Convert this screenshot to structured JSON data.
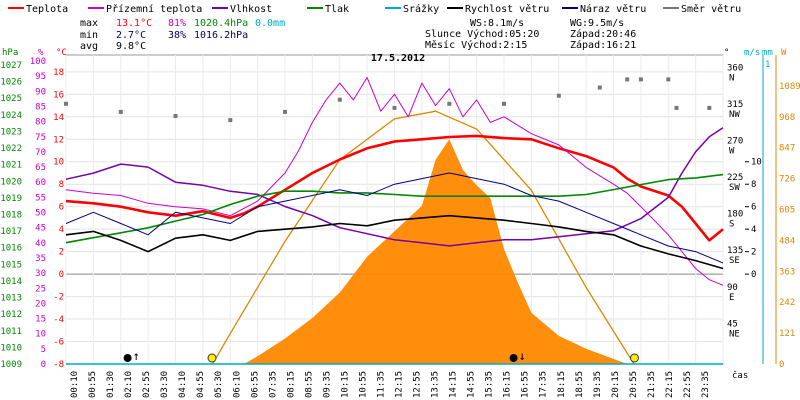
{
  "header": {
    "legend": [
      {
        "label": "Teplota",
        "color": "#ff0000"
      },
      {
        "label": "Přízemní teplota",
        "color": "#cc00cc"
      },
      {
        "label": "Vlhkost",
        "color": "#7700aa"
      },
      {
        "label": "Tlak",
        "color": "#008800"
      },
      {
        "label": "Srážky",
        "color": "#00aacc"
      },
      {
        "label": "Rychlost větru",
        "color": "#000000"
      },
      {
        "label": "Náraz větru",
        "color": "#000088"
      },
      {
        "label": "Směr větru",
        "color": "#777777"
      }
    ],
    "stats": {
      "max_label": "max",
      "max_temp": "13.1°C",
      "max_hum": "81%",
      "max_press": "1020.4hPa",
      "max_rain": "0.0mm",
      "min_label": "min",
      "min_temp": "2.7°C",
      "min_hum": "38%",
      "min_press": "1016.2hPa",
      "avg_label": "avg",
      "avg_temp": "9.8°C"
    },
    "wind": {
      "ws": "WS:8.1m/s",
      "wg": "WG:9.5m/s"
    },
    "sun": {
      "label": "Slunce",
      "rise": "Východ:05:20",
      "set": "Západ:20:46"
    },
    "moon": {
      "label": "Měsíc",
      "rise": "Východ:2:15",
      "set": "Západ:16:21"
    },
    "date": "17.5.2012"
  },
  "axes": {
    "left_units": [
      "hPa",
      "%",
      "°C"
    ],
    "right_units": [
      "°",
      "m/s",
      "mm",
      "W"
    ],
    "x_title": "čas",
    "hpa_ticks": [
      1009,
      1010,
      1011,
      1012,
      1013,
      1014,
      1015,
      1016,
      1017,
      1018,
      1019,
      1020,
      1021,
      1022,
      1023,
      1024,
      1025,
      1026,
      1027
    ],
    "pct_ticks": [
      0,
      5,
      10,
      15,
      20,
      25,
      30,
      35,
      40,
      45,
      50,
      55,
      60,
      65,
      70,
      75,
      80,
      85,
      90,
      95,
      100
    ],
    "c_ticks": [
      -8,
      -6,
      -4,
      -2,
      0,
      2,
      4,
      6,
      8,
      10,
      12,
      14,
      16,
      18
    ],
    "dir_ticks": [
      {
        "v": 45,
        "l": "NE"
      },
      {
        "v": 90,
        "l": "E"
      },
      {
        "v": 135,
        "l": "SE"
      },
      {
        "v": 180,
        "l": "S"
      },
      {
        "v": 225,
        "l": "SW"
      },
      {
        "v": 270,
        "l": "W"
      },
      {
        "v": 315,
        "l": "NW"
      },
      {
        "v": 360,
        "l": "N"
      }
    ],
    "ms_ticks": [
      0,
      2,
      4,
      6,
      8,
      10
    ],
    "w_ticks": [
      0,
      121,
      242,
      363,
      484,
      605,
      726,
      847,
      968,
      1089
    ],
    "time_labels": [
      "00:10",
      "00:55",
      "01:30",
      "02:10",
      "02:55",
      "03:30",
      "04:10",
      "04:55",
      "05:30",
      "06:10",
      "06:55",
      "07:35",
      "08:15",
      "08:55",
      "09:35",
      "10:15",
      "10:55",
      "11:35",
      "12:15",
      "12:55",
      "13:35",
      "14:15",
      "14:55",
      "15:35",
      "16:15",
      "16:55",
      "17:35",
      "18:15",
      "18:55",
      "19:35",
      "20:15",
      "20:55",
      "21:35",
      "22:15",
      "22:55",
      "23:35"
    ]
  },
  "chart_data": {
    "type": "line",
    "title": "17.5.2012",
    "x_unit": "hours",
    "x_range": [
      0,
      24
    ],
    "series": [
      {
        "name": "Teplota",
        "axis": "°C",
        "color": "#ff0000",
        "x": [
          0,
          1,
          2,
          3,
          4,
          5,
          6,
          6.5,
          7,
          8,
          9,
          10,
          11,
          12,
          13,
          14,
          15,
          16,
          17,
          18,
          19,
          20,
          20.5,
          21,
          22,
          22.5,
          23,
          23.5,
          24
        ],
        "y": [
          6.5,
          6.3,
          6.0,
          5.5,
          5.2,
          5.6,
          5.0,
          5.4,
          6.0,
          7.5,
          9.0,
          10.2,
          11.2,
          11.8,
          12.0,
          12.2,
          12.3,
          12.1,
          12.0,
          11.2,
          10.5,
          9.5,
          8.5,
          7.8,
          7.0,
          6.0,
          4.5,
          3.0,
          4.0
        ]
      },
      {
        "name": "Přízemní teplota",
        "axis": "°C",
        "color": "#cc00cc",
        "x": [
          0,
          1,
          2,
          3,
          4,
          5,
          6,
          7,
          8,
          8.5,
          9,
          9.5,
          10,
          10.5,
          11,
          11.5,
          12,
          12.5,
          13,
          13.5,
          14,
          14.5,
          15,
          15.5,
          16,
          17,
          18,
          19,
          20,
          20.5,
          21,
          22,
          23,
          23.5,
          24
        ],
        "y": [
          7.5,
          7.2,
          7.0,
          6.3,
          6.0,
          5.8,
          5.2,
          6.5,
          9.0,
          11.0,
          13.5,
          15.5,
          17.0,
          15.5,
          17.5,
          14.5,
          16.0,
          14.0,
          17.0,
          15.0,
          16.5,
          14.0,
          15.5,
          13.5,
          14.0,
          12.5,
          11.5,
          9.5,
          8.0,
          7.2,
          6.0,
          3.5,
          0.5,
          -0.5,
          -1.0
        ]
      },
      {
        "name": "Vlhkost",
        "axis": "%",
        "color": "#7700aa",
        "x": [
          0,
          1,
          2,
          3,
          4,
          5,
          6,
          7,
          8,
          9,
          10,
          11,
          12,
          13,
          14,
          15,
          16,
          17,
          18,
          19,
          20,
          21,
          22,
          22.5,
          23,
          23.5,
          24
        ],
        "y": [
          61,
          63,
          66,
          65,
          60,
          59,
          57,
          56,
          52,
          49,
          45,
          43,
          41,
          40,
          39,
          40,
          41,
          41,
          42,
          43,
          44,
          48,
          55,
          63,
          70,
          75,
          78
        ]
      },
      {
        "name": "Tlak",
        "axis": "hPa",
        "color": "#008800",
        "x": [
          0,
          1,
          2,
          3,
          4,
          5,
          6,
          7,
          8,
          9,
          10,
          11,
          12,
          13,
          14,
          15,
          16,
          17,
          18,
          19,
          20,
          21,
          22,
          23,
          24
        ],
        "y": [
          1016.3,
          1016.6,
          1016.9,
          1017.2,
          1017.6,
          1018.0,
          1018.6,
          1019.1,
          1019.4,
          1019.4,
          1019.3,
          1019.3,
          1019.2,
          1019.1,
          1019.1,
          1019.1,
          1019.1,
          1019.1,
          1019.1,
          1019.2,
          1019.5,
          1019.8,
          1020.1,
          1020.2,
          1020.4
        ]
      },
      {
        "name": "Rychlost větru",
        "axis": "m/s",
        "color": "#000000",
        "x": [
          0,
          1,
          2,
          3,
          4,
          5,
          6,
          7,
          8,
          9,
          10,
          11,
          12,
          13,
          14,
          15,
          16,
          17,
          18,
          19,
          20,
          21,
          22,
          23,
          24
        ],
        "y": [
          3.5,
          3.8,
          3.0,
          2.0,
          3.2,
          3.5,
          3.0,
          3.8,
          4.0,
          4.2,
          4.5,
          4.3,
          4.8,
          5.0,
          5.2,
          5.0,
          4.8,
          4.5,
          4.2,
          3.8,
          3.5,
          2.5,
          1.8,
          1.2,
          0.5
        ]
      },
      {
        "name": "Náraz větru",
        "axis": "m/s",
        "color": "#000088",
        "x": [
          0,
          1,
          2,
          3,
          4,
          5,
          6,
          7,
          8,
          9,
          10,
          11,
          12,
          13,
          14,
          15,
          16,
          17,
          18,
          19,
          20,
          21,
          22,
          23,
          24
        ],
        "y": [
          4.5,
          5.5,
          4.5,
          3.5,
          5.5,
          5.0,
          4.5,
          6.0,
          6.5,
          7.0,
          7.5,
          7.0,
          8.0,
          8.5,
          9.0,
          8.5,
          8.0,
          7.0,
          6.5,
          5.5,
          4.5,
          3.5,
          2.5,
          2.0,
          1.0
        ]
      },
      {
        "name": "Směr větru",
        "axis": "°",
        "color": "#777777",
        "x": [
          0,
          2,
          4,
          6,
          8,
          10,
          12,
          14,
          16,
          18,
          19.5,
          20.5,
          21,
          22,
          22.3,
          23.5
        ],
        "y": [
          320,
          310,
          305,
          300,
          310,
          325,
          315,
          320,
          320,
          330,
          340,
          350,
          350,
          350,
          315,
          315
        ]
      },
      {
        "name": "Srážky",
        "axis": "mm",
        "color": "#00aacc",
        "x": [
          0,
          24
        ],
        "y": [
          0,
          0
        ]
      }
    ],
    "solar_radiation": {
      "axis": "W",
      "color": "#ff8800",
      "x": [
        6.5,
        7,
        8,
        9,
        10,
        11,
        12,
        13,
        13.5,
        14,
        14.5,
        15,
        15.5,
        16,
        16.5,
        17,
        18,
        19,
        20,
        20.5
      ],
      "y": [
        0,
        30,
        100,
        180,
        280,
        420,
        520,
        620,
        800,
        880,
        760,
        700,
        650,
        450,
        320,
        200,
        110,
        60,
        20,
        0
      ]
    },
    "clear_sky_radiation": {
      "axis": "W",
      "color": "#dd8800",
      "x": [
        5.35,
        6,
        8,
        10,
        12,
        13.5,
        15,
        17,
        19,
        20.75
      ],
      "y": [
        0,
        120,
        480,
        800,
        960,
        990,
        920,
        680,
        300,
        0
      ]
    },
    "markers": {
      "sunrise": "05:20",
      "sunset": "20:46",
      "moonrise": "2:15",
      "moonset": "16:21"
    }
  }
}
